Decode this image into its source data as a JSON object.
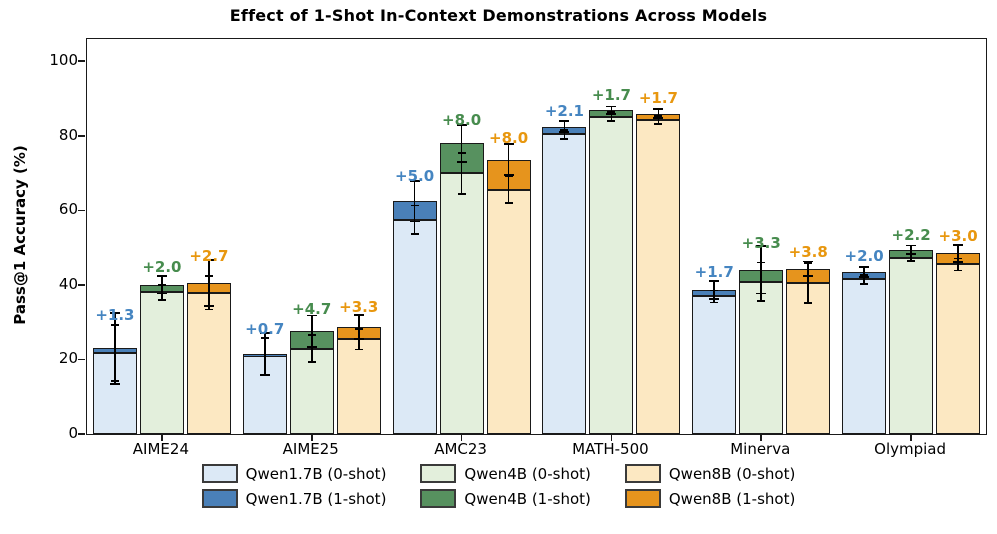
{
  "chart_data": {
    "type": "bar",
    "title": "Effect of 1-Shot In-Context Demonstrations Across Models",
    "ylabel": "Pass@1 Accuracy (%)",
    "ylim": [
      0,
      106
    ],
    "yticks": [
      "0",
      "20",
      "40",
      "60",
      "80",
      "100"
    ],
    "ytick_values": [
      0,
      20,
      40,
      60,
      80,
      100
    ],
    "grid": false,
    "legend_position": "bottom-center",
    "bar_edge_color": "#1a1a1a",
    "categories": [
      "AIME24",
      "AIME25",
      "AMC23",
      "MATH-500",
      "Minerva",
      "Olympiad"
    ],
    "series": [
      {
        "name": "Qwen1.7B",
        "zero_shot_label": "Qwen1.7B (0-shot)",
        "one_shot_label": "Qwen1.7B (1-shot)",
        "fill_0shot": "#dce9f6",
        "fill_1shot": "#4a80b8",
        "annotation_color": "#4585c1",
        "zero_shot": [
          21.7,
          20.8,
          57.5,
          80.4,
          36.9,
          41.5
        ],
        "gain": [
          1.3,
          0.7,
          5.0,
          2.1,
          1.7,
          2.0
        ],
        "one_shot_total": [
          23.0,
          21.5,
          62.5,
          82.5,
          38.6,
          43.5
        ],
        "gain_labels": [
          "+1.3",
          "+0.7",
          "+5.0",
          "+2.1",
          "+1.7",
          "+2.0"
        ],
        "err_0shot": [
          7.5,
          5.0,
          3.8,
          1.2,
          1.6,
          1.2
        ],
        "err_1shot": [
          9.5,
          5.6,
          5.5,
          1.4,
          2.4,
          1.4
        ]
      },
      {
        "name": "Qwen4B",
        "zero_shot_label": "Qwen4B (0-shot)",
        "one_shot_label": "Qwen4B (1-shot)",
        "fill_0shot": "#e3efdc",
        "fill_1shot": "#57915f",
        "annotation_color": "#478c4e",
        "zero_shot": [
          38.0,
          22.9,
          70.0,
          85.2,
          40.8,
          47.3
        ],
        "gain": [
          2.0,
          4.7,
          8.0,
          1.7,
          3.3,
          2.2
        ],
        "one_shot_total": [
          40.0,
          27.6,
          78.0,
          86.9,
          44.1,
          49.5
        ],
        "gain_labels": [
          "+2.0",
          "+4.7",
          "+8.0",
          "+1.7",
          "+3.3",
          "+2.2"
        ],
        "err_0shot": [
          2.0,
          3.6,
          5.5,
          1.2,
          5.2,
          0.9
        ],
        "err_1shot": [
          2.3,
          4.2,
          5.0,
          1.0,
          6.4,
          1.1
        ]
      },
      {
        "name": "Qwen8B",
        "zero_shot_label": "Qwen8B (0-shot)",
        "one_shot_label": "Qwen8B (1-shot)",
        "fill_0shot": "#fce8c2",
        "fill_1shot": "#e6941d",
        "annotation_color": "#e8970f",
        "zero_shot": [
          37.9,
          25.4,
          65.6,
          84.3,
          40.5,
          45.5
        ],
        "gain": [
          2.7,
          3.3,
          8.0,
          1.7,
          3.8,
          3.0
        ],
        "one_shot_total": [
          40.6,
          28.7,
          73.6,
          86.0,
          44.3,
          48.5
        ],
        "gain_labels": [
          "+2.7",
          "+3.3",
          "+8.0",
          "+1.7",
          "+3.8",
          "+3.0"
        ],
        "err_0shot": [
          4.5,
          2.7,
          3.6,
          1.1,
          5.3,
          1.6
        ],
        "err_1shot": [
          6.2,
          3.2,
          4.2,
          1.2,
          2.0,
          2.3
        ]
      }
    ]
  }
}
